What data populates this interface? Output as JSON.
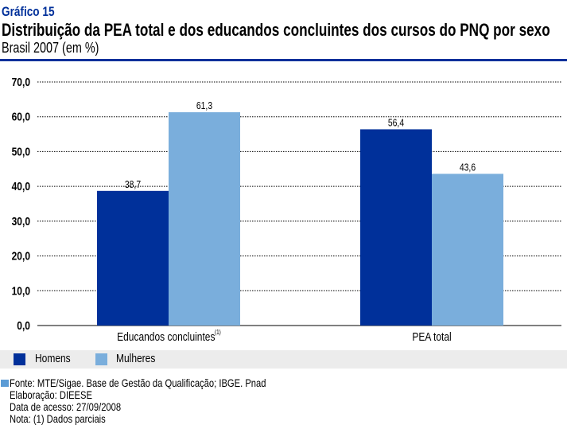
{
  "header": {
    "label": "Gráfico 15",
    "title": "Distribuição da PEA total e dos educandos concluintes dos cursos do PNQ por sexo",
    "subtitle": "Brasil 2007 (em %)"
  },
  "chart_data": {
    "type": "bar",
    "categories": [
      "Educandos concluintes",
      "PEA total"
    ],
    "category_notes": [
      "(1)",
      ""
    ],
    "series": [
      {
        "name": "Homens",
        "values": [
          38.7,
          56.4
        ],
        "labels": [
          "38,7",
          "56,4"
        ],
        "color": "#00309a"
      },
      {
        "name": "Mulheres",
        "values": [
          61.3,
          43.6
        ],
        "labels": [
          "61,3",
          "43,6"
        ],
        "color": "#7aaedc"
      }
    ],
    "ylim": [
      0,
      70
    ],
    "yticks": [
      0,
      10,
      20,
      30,
      40,
      50,
      60,
      70
    ],
    "ytick_labels": [
      "0,0",
      "10,0",
      "20,0",
      "30,0",
      "40,0",
      "50,0",
      "60,0",
      "70,0"
    ],
    "grid": true,
    "legend": "bottom"
  },
  "footer": {
    "source": "Fonte: MTE/Sigae. Base de Gestão da Qualificação; IBGE. Pnad",
    "elaboration": "Elaboração: DIEESE",
    "access": "Data de acesso: 27/09/2008",
    "note": "Nota: (1) Dados parciais"
  }
}
